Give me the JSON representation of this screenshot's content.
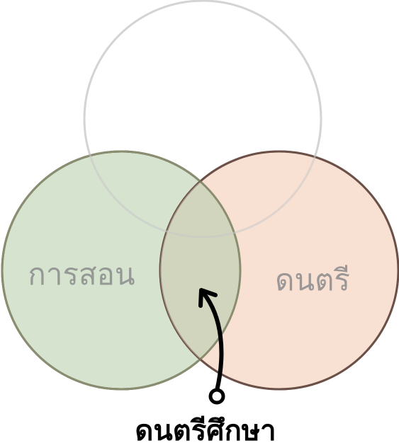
{
  "diagram": {
    "sets": [
      {
        "id": "top",
        "label": "",
        "fill": "#ffffff",
        "stroke": "#e3e3e3"
      },
      {
        "id": "left",
        "label": "การสอน",
        "fill": "#d6e3cf",
        "stroke": "#4f5d49"
      },
      {
        "id": "right",
        "label": "ดนตรี",
        "fill": "#f8e1d3",
        "stroke": "#6b5048"
      }
    ],
    "overlap_fill": "#d2d5bd",
    "overlap_label": "ดนตรีศึกษา",
    "arrow_color": "#000000"
  }
}
